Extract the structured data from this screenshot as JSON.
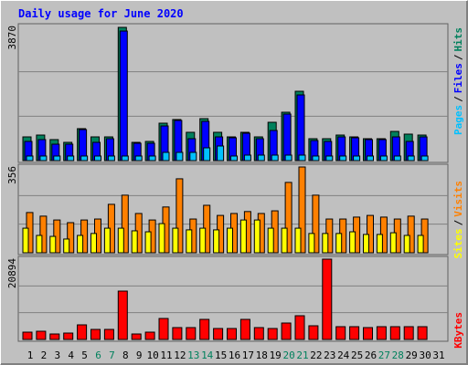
{
  "chart_data": [
    {
      "type": "bar",
      "title": "Daily usage for June 2020",
      "ylim": [
        0,
        3870
      ],
      "yticks": [
        3870
      ],
      "grid_divisions": 3,
      "legend_separator": "/",
      "series": [
        {
          "name": "Pages",
          "color": "#00c0ff",
          "values": [
            133,
            133,
            133,
            133,
            133,
            133,
            133,
            133,
            133,
            133,
            239,
            239,
            239,
            371,
            424,
            133,
            159,
            159,
            159,
            159,
            159,
            133,
            133,
            133,
            133,
            133,
            133,
            133,
            133,
            133,
            null
          ]
        },
        {
          "name": "Files",
          "color": "#0000ff",
          "values": [
            557,
            610,
            477,
            477,
            901,
            530,
            636,
            3763,
            504,
            504,
            1007,
            1166,
            636,
            1140,
            689,
            663,
            795,
            636,
            875,
            1352,
            1908,
            583,
            557,
            689,
            663,
            610,
            610,
            689,
            557,
            689,
            null
          ]
        },
        {
          "name": "Hits",
          "color": "#00805c",
          "values": [
            689,
            742,
            610,
            530,
            928,
            689,
            689,
            3870,
            530,
            557,
            1087,
            1193,
            822,
            1219,
            822,
            689,
            822,
            689,
            1113,
            1405,
            2014,
            636,
            636,
            742,
            689,
            636,
            636,
            848,
            769,
            742,
            null
          ]
        }
      ]
    },
    {
      "type": "bar",
      "ylim": [
        0,
        356
      ],
      "yticks": [
        356
      ],
      "grid_divisions": 3,
      "legend_separator": "/",
      "series": [
        {
          "name": "Sites",
          "color": "#ffff00",
          "values": [
            102,
            72,
            68,
            57,
            72,
            80,
            102,
            102,
            91,
            87,
            121,
            102,
            95,
            102,
            95,
            102,
            136,
            136,
            102,
            102,
            102,
            80,
            80,
            80,
            87,
            76,
            76,
            83,
            72,
            72,
            null
          ]
        },
        {
          "name": "Visits",
          "color": "#ff8000",
          "values": [
            167,
            152,
            136,
            125,
            136,
            140,
            201,
            239,
            163,
            136,
            190,
            307,
            140,
            197,
            155,
            163,
            171,
            163,
            174,
            292,
            356,
            239,
            140,
            140,
            148,
            155,
            148,
            140,
            152,
            140,
            null
          ]
        }
      ]
    },
    {
      "type": "bar",
      "ylim": [
        0,
        20894
      ],
      "yticks": [
        20894
      ],
      "grid_divisions": 3,
      "categories": [
        "1",
        "2",
        "3",
        "4",
        "5",
        "6",
        "7",
        "8",
        "9",
        "10",
        "11",
        "12",
        "13",
        "14",
        "15",
        "16",
        "17",
        "18",
        "19",
        "20",
        "21",
        "22",
        "23",
        "24",
        "25",
        "26",
        "27",
        "28",
        "29",
        "30",
        "31"
      ],
      "category_colors": [
        "#000000",
        "#000000",
        "#000000",
        "#000000",
        "#000000",
        "#00805c",
        "#00805c",
        "#000000",
        "#000000",
        "#000000",
        "#000000",
        "#000000",
        "#00805c",
        "#00805c",
        "#000000",
        "#000000",
        "#000000",
        "#000000",
        "#000000",
        "#00805c",
        "#00805c",
        "#000000",
        "#000000",
        "#000000",
        "#000000",
        "#000000",
        "#00805c",
        "#00805c",
        "#000000",
        "#000000",
        "#000000"
      ],
      "series": [
        {
          "name": "KBytes",
          "color": "#ff0000",
          "values": [
            1899,
            2137,
            1424,
            1662,
            3798,
            2611,
            2611,
            12582,
            1424,
            1899,
            5460,
            3086,
            3086,
            5223,
            2849,
            2849,
            5223,
            3086,
            2849,
            4273,
            6172,
            3561,
            20894,
            3324,
            3324,
            3086,
            3324,
            3324,
            3324,
            3324,
            null
          ]
        }
      ]
    }
  ]
}
